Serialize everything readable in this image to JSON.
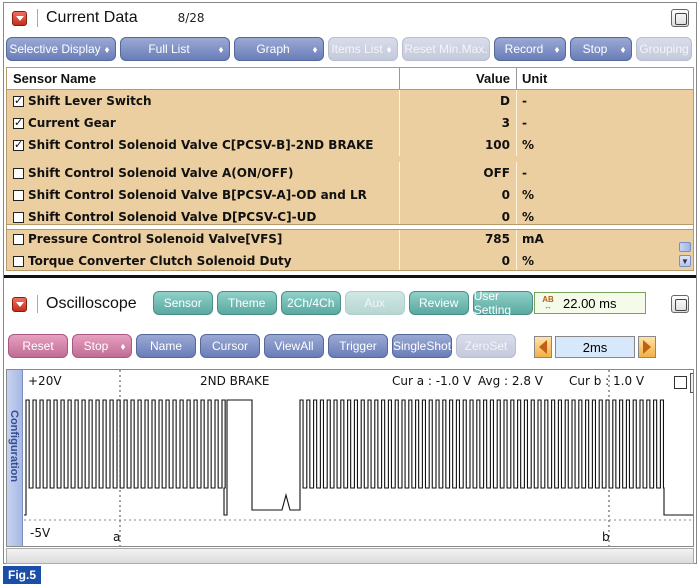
{
  "current_data": {
    "title": "Current Data",
    "count": "8/28",
    "toolbar": [
      {
        "label": "Selective Display",
        "dropdown": true,
        "disabled": false,
        "width": 110
      },
      {
        "label": "Full List",
        "dropdown": true,
        "disabled": false,
        "width": 110
      },
      {
        "label": "Graph",
        "dropdown": true,
        "disabled": false,
        "width": 90
      },
      {
        "label": "Items List",
        "dropdown": true,
        "disabled": true,
        "width": 70
      },
      {
        "label": "Reset Min.Max.",
        "dropdown": false,
        "disabled": true,
        "width": 88
      },
      {
        "label": "Record",
        "dropdown": true,
        "disabled": false,
        "width": 72
      },
      {
        "label": "Stop",
        "dropdown": true,
        "disabled": false,
        "width": 62
      },
      {
        "label": "Grouping",
        "dropdown": false,
        "disabled": true,
        "width": 56
      }
    ],
    "columns": {
      "name": "Sensor Name",
      "value": "Value",
      "unit": "Unit"
    },
    "rows": [
      {
        "name": "Shift Lever Switch",
        "value": "D",
        "unit": "-",
        "checked": true
      },
      {
        "name": "Current Gear",
        "value": "3",
        "unit": "-",
        "checked": true
      },
      {
        "name": "Shift Control Solenoid Valve C[PCSV-B]-2ND BRAKE",
        "value": "100",
        "unit": "%",
        "checked": true
      },
      {
        "name": "Shift Control Solenoid Valve A(ON/OFF)",
        "value": "OFF",
        "unit": "-",
        "checked": false
      },
      {
        "name": "Shift Control Solenoid Valve B[PCSV-A]-OD and LR",
        "value": "0",
        "unit": "%",
        "checked": false
      },
      {
        "name": "Shift Control Solenoid Valve D[PCSV-C]-UD",
        "value": "0",
        "unit": "%",
        "checked": false
      },
      {
        "name": "Pressure Control Solenoid Valve[VFS]",
        "value": "785",
        "unit": "mA",
        "checked": false
      },
      {
        "name": "Torque Converter Clutch Solenoid Duty",
        "value": "0",
        "unit": "%",
        "checked": false
      }
    ]
  },
  "oscilloscope": {
    "title": "Oscilloscope",
    "tabs": [
      {
        "label": "Sensor",
        "disabled": false,
        "width": 62
      },
      {
        "label": "Theme",
        "disabled": false,
        "width": 62
      },
      {
        "label": "2Ch/4Ch",
        "disabled": false,
        "width": 62
      },
      {
        "label": "Aux",
        "disabled": true,
        "width": 62
      },
      {
        "label": "Review",
        "disabled": false,
        "width": 62
      },
      {
        "label": "User Setting",
        "disabled": false,
        "width": 62
      }
    ],
    "time_per_div": "22.00 ms",
    "controls": [
      {
        "label": "Reset",
        "color": "pink",
        "dropdown": false,
        "disabled": false,
        "width": 62
      },
      {
        "label": "Stop",
        "color": "pink",
        "dropdown": true,
        "disabled": false,
        "width": 62
      },
      {
        "label": "Name",
        "color": "blue",
        "dropdown": false,
        "disabled": false,
        "width": 62
      },
      {
        "label": "Cursor",
        "color": "blue",
        "dropdown": false,
        "disabled": false,
        "width": 62
      },
      {
        "label": "ViewAll",
        "color": "blue",
        "dropdown": false,
        "disabled": false,
        "width": 62
      },
      {
        "label": "Trigger",
        "color": "blue",
        "dropdown": false,
        "disabled": false,
        "width": 62
      },
      {
        "label": "SingleShot",
        "color": "blue",
        "dropdown": false,
        "disabled": false,
        "width": 62
      },
      {
        "label": "ZeroSet",
        "color": "blue",
        "dropdown": false,
        "disabled": true,
        "width": 62
      }
    ],
    "scale": "2ms",
    "config_tab": "Configuration",
    "plot": {
      "top_label": "+20V",
      "bottom_label": "-5V",
      "channel_label": "2ND BRAKE",
      "cur_a": "Cur a : -1.0 V",
      "avg": "Avg : 2.8 V",
      "cur_b": "Cur b : 1.0 V",
      "cursor_a": "a",
      "cursor_b": "b"
    }
  },
  "figure_label": "Fig.5"
}
